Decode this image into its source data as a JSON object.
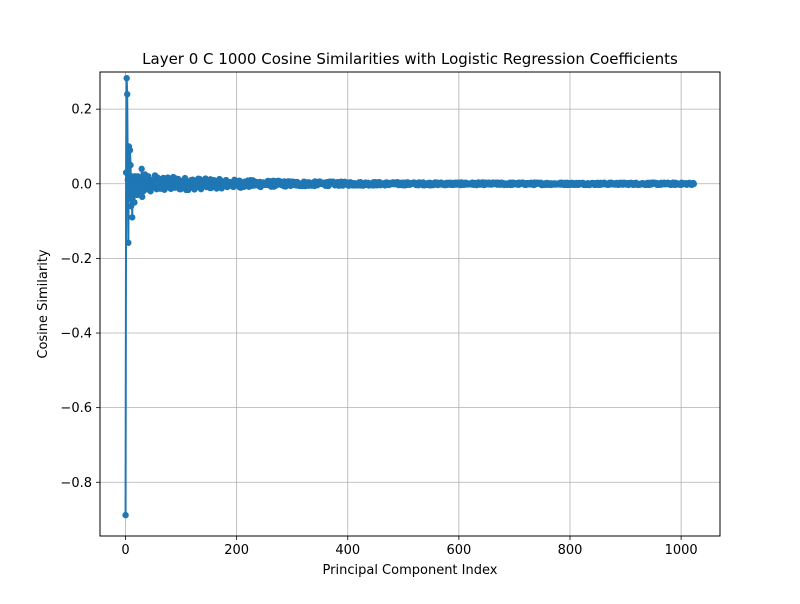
{
  "chart_data": {
    "type": "line",
    "title": "Layer 0 C 1000 Cosine Similarities with Logistic Regression Coefficients",
    "xlabel": "Principal Component Index",
    "ylabel": "Cosine Similarity",
    "xlim": [
      -46,
      1070
    ],
    "ylim": [
      -0.944,
      0.2996
    ],
    "xticks": [
      0,
      200,
      400,
      600,
      800,
      1000
    ],
    "xtick_labels": [
      "0",
      "200",
      "400",
      "600",
      "800",
      "1000"
    ],
    "yticks": [
      0.2,
      0.0,
      -0.2,
      -0.4,
      -0.6,
      -0.8
    ],
    "ytick_labels": [
      "0.2",
      "0.0",
      "−0.2",
      "−0.4",
      "−0.6",
      "−0.8"
    ],
    "grid": true,
    "marker": "circle",
    "color": "#1f77b4",
    "series": [
      {
        "name": "",
        "x_range": [
          0,
          1023
        ],
        "head_values": [
          -0.888,
          0.03,
          0.283,
          0.24,
          0.01,
          -0.158,
          0.1,
          -0.04,
          0.09,
          0.05,
          -0.06,
          0.02,
          -0.09,
          0.015,
          -0.03,
          0.01,
          -0.05,
          0.02,
          0.0,
          -0.02,
          0.01,
          -0.03,
          0.02,
          -0.01,
          0.0,
          0.01,
          -0.02,
          0.015,
          -0.01,
          0.04,
          -0.035,
          0.02,
          -0.02,
          0.01,
          0.0,
          0.025,
          -0.01,
          0.015,
          -0.005,
          0.01,
          -0.015,
          0.02,
          0.005,
          -0.01,
          0.01,
          -0.02,
          0.0,
          0.01,
          -0.005,
          0.008
        ],
        "tail_amplitude_start": 0.02,
        "tail_amplitude_end": 0.003
      }
    ]
  }
}
